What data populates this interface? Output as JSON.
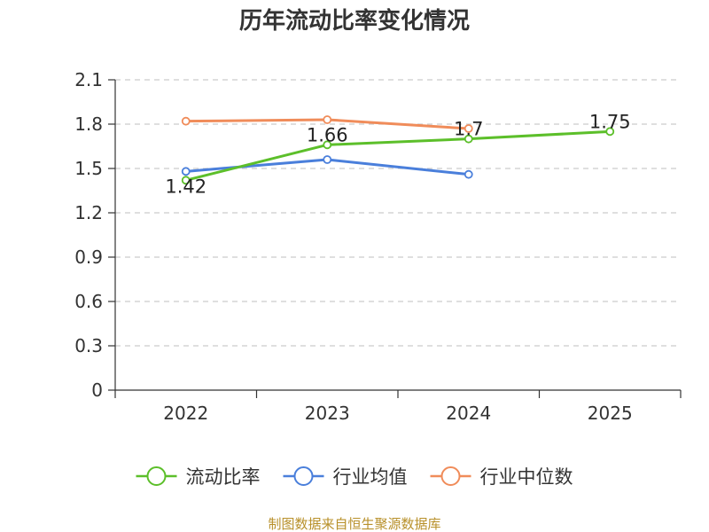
{
  "chart_data": {
    "type": "line",
    "title": "历年流动比率变化情况",
    "categories": [
      "2022",
      "2023",
      "2024",
      "2025"
    ],
    "ylim": [
      0,
      2.1
    ],
    "yticks": [
      "0",
      "0.3",
      "0.6",
      "0.9",
      "1.2",
      "1.5",
      "1.8",
      "2.1"
    ],
    "grid": true,
    "legend_position": "bottom",
    "series": [
      {
        "name": "流动比率",
        "color": "#5cbf2a",
        "values": [
          1.42,
          1.66,
          1.7,
          1.75
        ],
        "labels": [
          "1.42",
          "1.66",
          "1.7",
          "1.75"
        ]
      },
      {
        "name": "行业均值",
        "color": "#4a7fdb",
        "values": [
          1.48,
          1.56,
          1.46,
          null
        ]
      },
      {
        "name": "行业中位数",
        "color": "#f08c5a",
        "values": [
          1.82,
          1.83,
          1.77,
          null
        ]
      }
    ],
    "source": "制图数据来自恒生聚源数据库"
  }
}
